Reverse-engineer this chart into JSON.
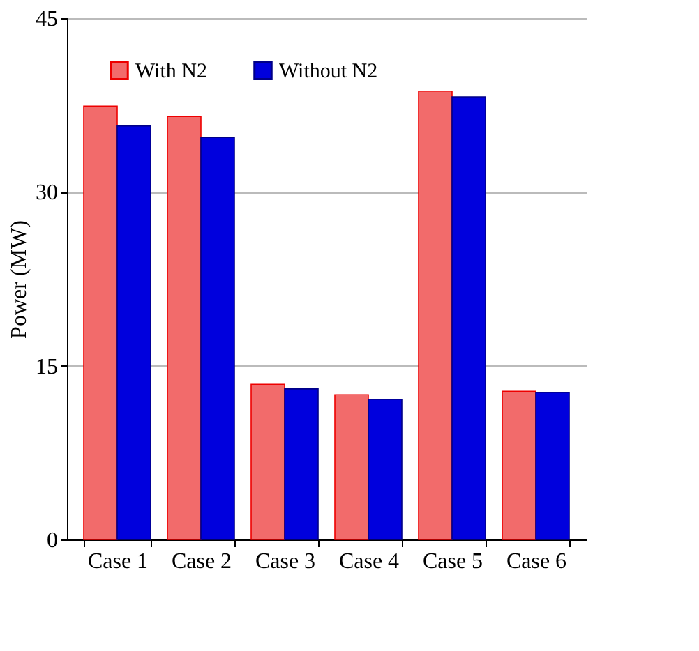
{
  "chart_data": {
    "type": "bar",
    "ylabel": "Power (MW)",
    "categories": [
      "Case 1",
      "Case 2",
      "Case 3",
      "Case 4",
      "Case 5",
      "Case 6"
    ],
    "series": [
      {
        "name": "With N2",
        "color": "#f26b6b",
        "values": [
          37.4,
          36.5,
          13.4,
          12.5,
          38.7,
          12.8
        ]
      },
      {
        "name": "Without N2",
        "color": "#0000dd",
        "values": [
          35.7,
          34.7,
          13.0,
          12.1,
          38.2,
          12.7
        ]
      }
    ],
    "ylim": [
      0,
      45
    ],
    "yticks": [
      0,
      15,
      30,
      45
    ],
    "grid": "y",
    "legend": "top left"
  }
}
